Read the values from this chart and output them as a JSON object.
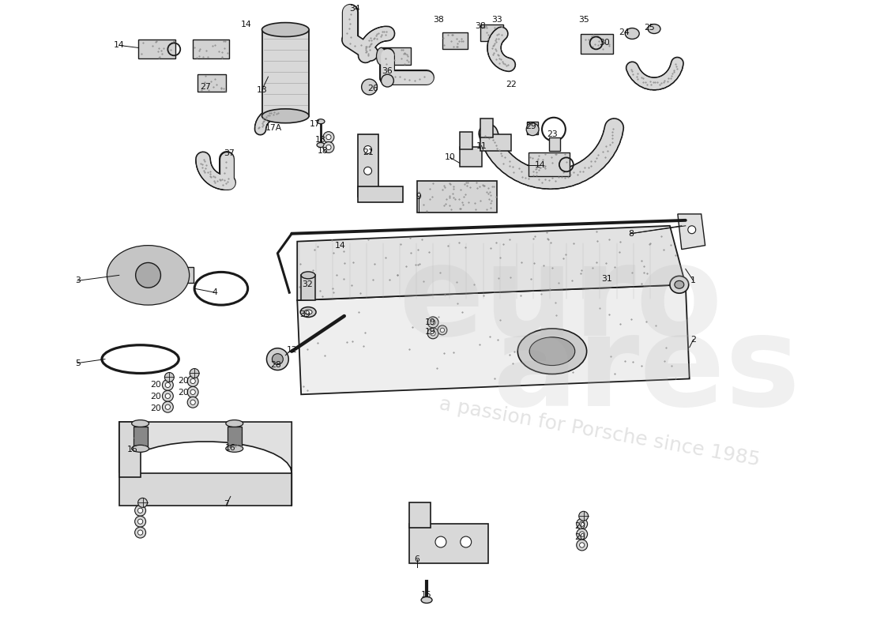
{
  "bg_color": "#ffffff",
  "line_color": "#1a1a1a",
  "watermark1": "euro",
  "watermark2": "ares",
  "watermark3": "a passion for Porsche since 1985",
  "figsize": [
    11.0,
    8.0
  ],
  "dpi": 100,
  "labels": [
    [
      "1",
      880,
      355
    ],
    [
      "2",
      880,
      430
    ],
    [
      "3",
      95,
      355
    ],
    [
      "4",
      270,
      370
    ],
    [
      "5",
      95,
      460
    ],
    [
      "6",
      528,
      710
    ],
    [
      "7",
      285,
      640
    ],
    [
      "8",
      800,
      295
    ],
    [
      "9",
      530,
      248
    ],
    [
      "10",
      570,
      198
    ],
    [
      "11",
      610,
      183
    ],
    [
      "12",
      368,
      443
    ],
    [
      "13",
      330,
      112
    ],
    [
      "14",
      148,
      55
    ],
    [
      "14",
      310,
      28
    ],
    [
      "14",
      430,
      310
    ],
    [
      "14",
      685,
      208
    ],
    [
      "15",
      540,
      755
    ],
    [
      "16",
      165,
      570
    ],
    [
      "16",
      290,
      568
    ],
    [
      "17",
      398,
      155
    ],
    [
      "17A",
      345,
      160
    ],
    [
      "18",
      405,
      175
    ],
    [
      "18",
      408,
      190
    ],
    [
      "19",
      545,
      408
    ],
    [
      "19",
      545,
      420
    ],
    [
      "20",
      195,
      488
    ],
    [
      "20",
      230,
      483
    ],
    [
      "20",
      195,
      503
    ],
    [
      "20",
      230,
      498
    ],
    [
      "20",
      195,
      518
    ],
    [
      "20",
      735,
      668
    ],
    [
      "20",
      735,
      682
    ],
    [
      "21",
      465,
      192
    ],
    [
      "22",
      648,
      105
    ],
    [
      "23",
      700,
      168
    ],
    [
      "24",
      792,
      38
    ],
    [
      "25",
      824,
      32
    ],
    [
      "26",
      472,
      110
    ],
    [
      "27",
      258,
      108
    ],
    [
      "28",
      348,
      462
    ],
    [
      "29",
      673,
      158
    ],
    [
      "30",
      767,
      52
    ],
    [
      "31",
      770,
      353
    ],
    [
      "32",
      388,
      360
    ],
    [
      "33",
      630,
      22
    ],
    [
      "34",
      448,
      8
    ],
    [
      "35",
      740,
      22
    ],
    [
      "36",
      490,
      88
    ],
    [
      "37",
      288,
      193
    ],
    [
      "38",
      555,
      22
    ],
    [
      "38",
      608,
      30
    ],
    [
      "39",
      385,
      398
    ]
  ]
}
